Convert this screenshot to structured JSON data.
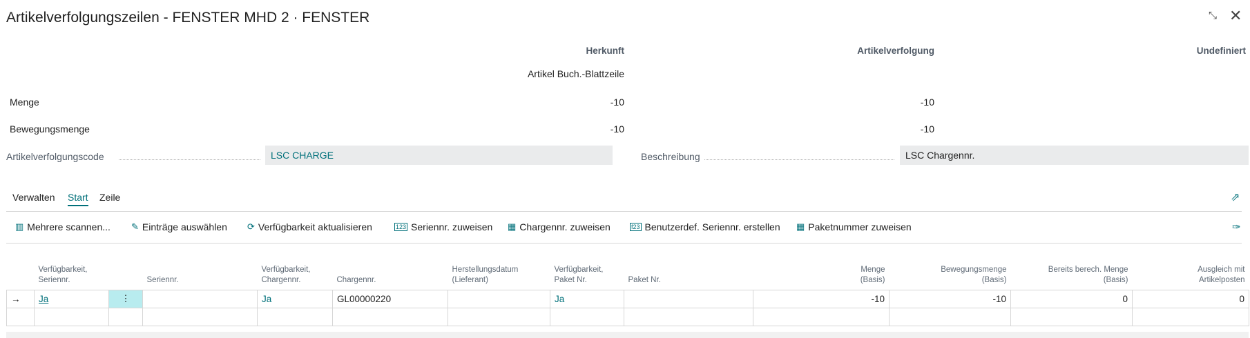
{
  "window": {
    "title": "Artikelverfolgungszeilen - FENSTER MHD 2 · FENSTER",
    "collapse_icon": "collapse-icon",
    "close_icon": "close-icon"
  },
  "summary": {
    "headers": {
      "source": "Herkunft",
      "tracking": "Artikelverfolgung",
      "undefined": "Undefiniert"
    },
    "source_type": "Artikel Buch.-Blattzeile",
    "rows": [
      {
        "label": "Menge",
        "source": "-10",
        "tracking": "-10",
        "undefined": ""
      },
      {
        "label": "Bewegungsmenge",
        "source": "-10",
        "tracking": "-10",
        "undefined": ""
      }
    ]
  },
  "fields": {
    "code_label": "Artikelverfolgungscode",
    "code_value": "LSC CHARGE",
    "desc_label": "Beschreibung",
    "desc_value": "LSC Chargennr."
  },
  "tabs": [
    {
      "label": "Verwalten"
    },
    {
      "label": "Start",
      "active": true
    },
    {
      "label": "Zeile"
    }
  ],
  "toolbar": [
    {
      "label": "Mehrere scannen...",
      "icon": "barcode-icon"
    },
    {
      "label": "Einträge auswählen",
      "icon": "select-entries-icon"
    },
    {
      "label": "Verfügbarkeit aktualisieren",
      "icon": "refresh-icon"
    },
    {
      "label": "Seriennr. zuweisen",
      "icon": "serial-number-icon"
    },
    {
      "label": "Chargennr. zuweisen",
      "icon": "grid-icon"
    },
    {
      "label": "Benutzerdef. Seriennr. erstellen",
      "icon": "custom-serial-icon"
    },
    {
      "label": "Paketnummer zuweisen",
      "icon": "grid-icon"
    }
  ],
  "table": {
    "columns": [
      "",
      "Verfügbarkeit, Seriennr.",
      "",
      "Seriennr.",
      "Verfügbarkeit, Chargennr.",
      "Chargennr.",
      "Herstellungsdatum (Lieferant)",
      "Verfügbarkeit, Paket Nr.",
      "Paket Nr.",
      "Menge (Basis)",
      "Bewegungsmenge (Basis)",
      "Bereits berech. Menge (Basis)",
      "Ausgleich mit Artikelposten"
    ],
    "rows": [
      [
        "→",
        "Ja",
        "⋮",
        "",
        "Ja",
        "GL00000220",
        "",
        "Ja",
        "",
        "-10",
        "-10",
        "0",
        "0"
      ],
      [
        "",
        "",
        "",
        "",
        "",
        "",
        "",
        "",
        "",
        "",
        "",
        "",
        ""
      ]
    ]
  },
  "accent": "#00707a"
}
